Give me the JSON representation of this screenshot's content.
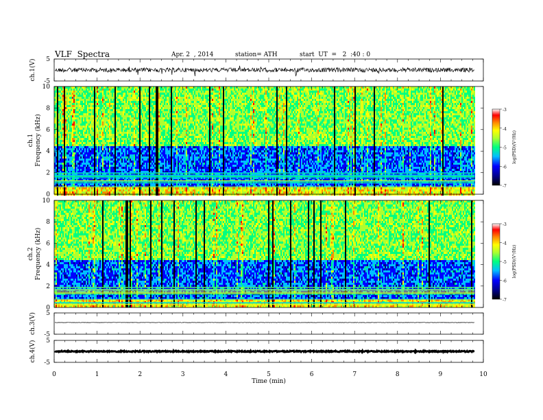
{
  "header": {
    "title": "VLF  Spectra",
    "date": "Apr. 2  , 2014",
    "station": "station= ATH",
    "start": "start  UT  =   2  :40 : 0"
  },
  "colors": {
    "colormap": [
      "#000000",
      "#00008b",
      "#0000ff",
      "#00bfff",
      "#00ff80",
      "#adff2f",
      "#ffff00",
      "#ff8c00",
      "#ff0000",
      "#ffffff"
    ]
  },
  "chart_data": [
    {
      "type": "line",
      "panel": "ch1-waveform",
      "ylabel": "ch.1(V)",
      "ylim": [
        -5,
        5
      ],
      "y_ticks": [
        "5",
        "-5"
      ],
      "xlim": [
        0,
        10
      ],
      "baseline_value": 0,
      "noise_amplitude": 1.0,
      "series_end_min": 9.8
    },
    {
      "type": "heatmap",
      "panel": "ch1-spectrogram",
      "ylabel": "ch.1\nFrequency  (kHz)",
      "ylim": [
        0,
        10
      ],
      "y_ticks": [
        "0",
        "2",
        "4",
        "6",
        "8",
        "10"
      ],
      "xlim": [
        0,
        10
      ],
      "series_end_min": 9.8,
      "colorbar": {
        "label": "log(PSD)(V²/Hz)",
        "range": [
          -7,
          -3
        ],
        "ticks": [
          "-3",
          "-4",
          "-5",
          "-6",
          "-7"
        ]
      }
    },
    {
      "type": "heatmap",
      "panel": "ch2-spectrogram",
      "ylabel": "ch.2\nFrequency  (kHz)",
      "ylim": [
        0,
        10
      ],
      "y_ticks": [
        "0",
        "2",
        "4",
        "6",
        "8",
        "10"
      ],
      "xlim": [
        0,
        10
      ],
      "series_end_min": 9.8,
      "colorbar": {
        "label": "log(PSD)(V²/Hz)",
        "range": [
          -7,
          -3
        ],
        "ticks": [
          "-3",
          "-4",
          "-5",
          "-6",
          "-7"
        ]
      }
    },
    {
      "type": "line",
      "panel": "ch3-waveform",
      "ylabel": "ch.3(V)",
      "ylim": [
        -5,
        5
      ],
      "y_ticks": [
        "5",
        "-5"
      ],
      "xlim": [
        0,
        10
      ],
      "baseline_value": 0.5,
      "noise_amplitude": 0.08,
      "series_end_min": 9.8
    },
    {
      "type": "line",
      "panel": "ch4-waveform",
      "ylabel": "ch.4(V)",
      "ylim": [
        -5,
        5
      ],
      "y_ticks": [
        "5",
        "-5"
      ],
      "xlim": [
        0,
        10
      ],
      "baseline_value": 0,
      "noise_amplitude": 0.25,
      "series_end_min": 9.8
    }
  ],
  "x_axis": {
    "label": "Time  (min)",
    "ticks": [
      "0",
      "1",
      "2",
      "3",
      "4",
      "5",
      "6",
      "7",
      "8",
      "9",
      "10"
    ],
    "range": [
      0,
      10
    ]
  }
}
